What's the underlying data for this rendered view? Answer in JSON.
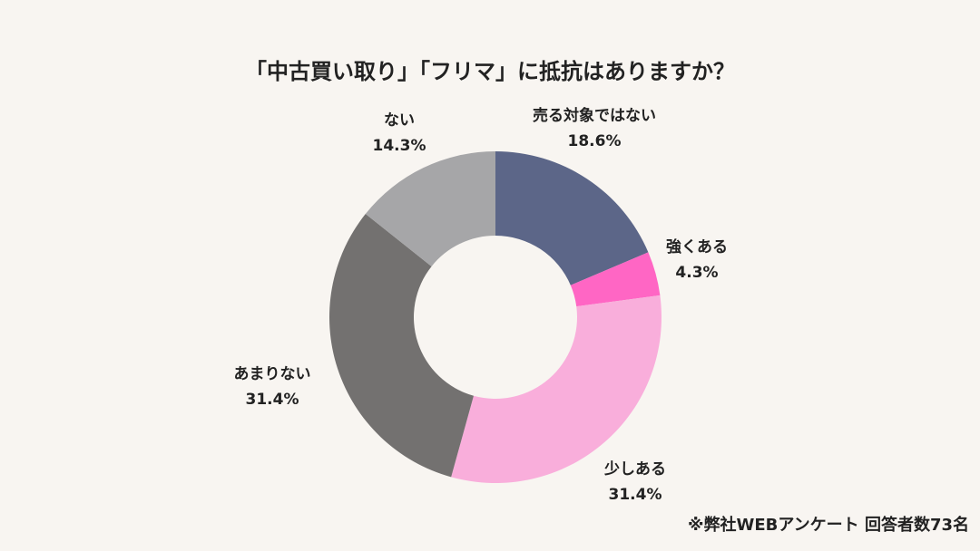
{
  "chart_data": {
    "type": "donut",
    "title": "「中古買い取り」「フリマ」に抵抗はありますか？",
    "note": "※弊社WEBアンケート 回答者数73名",
    "categories": [
      "売る対象ではない",
      "強くある",
      "少しある",
      "あまりない",
      "ない"
    ],
    "values": [
      18.6,
      4.3,
      31.4,
      31.4,
      14.3
    ],
    "value_labels": [
      "18.6%",
      "4.3%",
      "31.4%",
      "31.4%",
      "14.3%"
    ],
    "colors": [
      "#5c6688",
      "#ff66c4",
      "#f9aedb",
      "#737170",
      "#a6a6a8"
    ]
  }
}
